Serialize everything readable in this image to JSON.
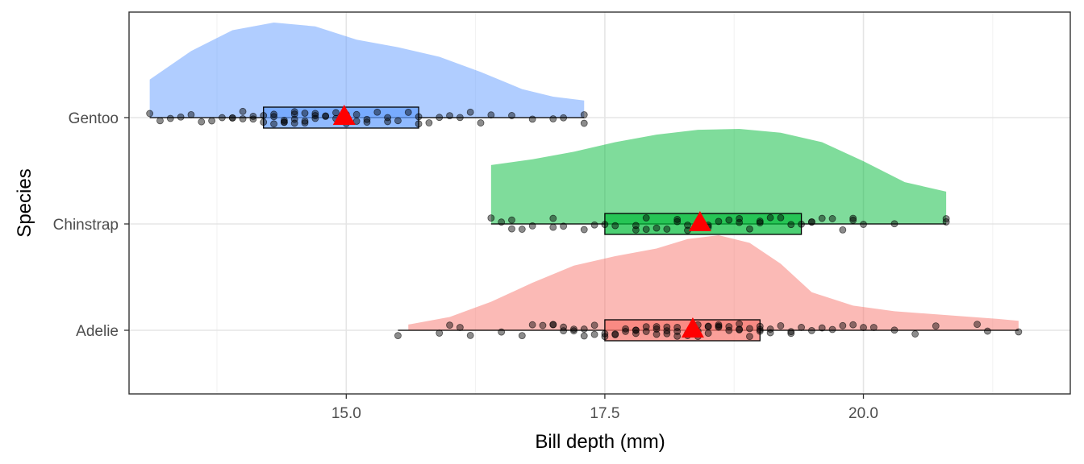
{
  "chart_data": {
    "type": "raincloud",
    "title": "",
    "xlabel": "Bill depth (mm)",
    "ylabel": "Species",
    "xlim": [
      12.9,
      22.0
    ],
    "x_ticks": [
      15.0,
      17.5,
      20.0
    ],
    "x_tick_labels": [
      "15.0",
      "17.5",
      "20.0"
    ],
    "grid": true,
    "categories": [
      "Gentoo",
      "Chinstrap",
      "Adelie"
    ],
    "mean_marker_color": "#ff0000",
    "series": [
      {
        "name": "Gentoo",
        "fill": "#619cff",
        "min": 13.1,
        "q1": 14.2,
        "median": 15.0,
        "q3": 15.7,
        "max": 17.3,
        "mean": 14.98,
        "density": [
          [
            13.1,
            0.4
          ],
          [
            13.5,
            0.7
          ],
          [
            13.9,
            0.92
          ],
          [
            14.3,
            1.0
          ],
          [
            14.7,
            0.96
          ],
          [
            15.1,
            0.82
          ],
          [
            15.5,
            0.74
          ],
          [
            15.9,
            0.64
          ],
          [
            16.3,
            0.48
          ],
          [
            16.7,
            0.3
          ],
          [
            17.0,
            0.22
          ],
          [
            17.3,
            0.18
          ]
        ],
        "points": [
          13.1,
          13.2,
          13.3,
          13.4,
          13.5,
          13.6,
          13.7,
          13.8,
          13.9,
          13.9,
          14.0,
          14.0,
          14.1,
          14.1,
          14.2,
          14.2,
          14.3,
          14.3,
          14.3,
          14.4,
          14.4,
          14.4,
          14.5,
          14.5,
          14.5,
          14.5,
          14.6,
          14.6,
          14.6,
          14.7,
          14.7,
          14.7,
          14.8,
          14.8,
          14.9,
          14.9,
          15.0,
          15.0,
          15.0,
          15.1,
          15.1,
          15.2,
          15.2,
          15.3,
          15.4,
          15.4,
          15.5,
          15.6,
          15.7,
          15.7,
          15.8,
          15.9,
          16.0,
          16.1,
          16.2,
          16.3,
          16.4,
          16.6,
          16.8,
          17.0,
          17.1,
          17.3,
          17.3
        ]
      },
      {
        "name": "Chinstrap",
        "fill": "#00ba38",
        "min": 16.4,
        "q1": 17.5,
        "median": 18.45,
        "q3": 19.4,
        "max": 20.8,
        "mean": 18.42,
        "density": [
          [
            16.4,
            0.62
          ],
          [
            16.8,
            0.68
          ],
          [
            17.2,
            0.76
          ],
          [
            17.6,
            0.86
          ],
          [
            18.0,
            0.94
          ],
          [
            18.4,
            0.99
          ],
          [
            18.8,
            1.0
          ],
          [
            19.2,
            0.96
          ],
          [
            19.6,
            0.86
          ],
          [
            20.0,
            0.66
          ],
          [
            20.4,
            0.44
          ],
          [
            20.8,
            0.34
          ]
        ],
        "points": [
          16.4,
          16.5,
          16.6,
          16.6,
          16.7,
          16.8,
          17.0,
          17.0,
          17.1,
          17.3,
          17.4,
          17.5,
          17.6,
          17.8,
          17.8,
          17.9,
          17.9,
          18.0,
          18.1,
          18.2,
          18.2,
          18.3,
          18.3,
          18.4,
          18.4,
          18.5,
          18.5,
          18.6,
          18.7,
          18.8,
          18.8,
          18.9,
          19.0,
          19.0,
          19.1,
          19.2,
          19.3,
          19.4,
          19.5,
          19.5,
          19.6,
          19.7,
          19.8,
          19.9,
          19.9,
          20.0,
          20.3,
          20.8,
          20.8
        ]
      },
      {
        "name": "Adelie",
        "fill": "#f8766d",
        "min": 15.5,
        "q1": 17.5,
        "median": 18.4,
        "q3": 19.0,
        "max": 21.5,
        "mean": 18.35,
        "density": [
          [
            15.6,
            0.06
          ],
          [
            16.0,
            0.14
          ],
          [
            16.4,
            0.3
          ],
          [
            16.8,
            0.5
          ],
          [
            17.2,
            0.68
          ],
          [
            17.6,
            0.78
          ],
          [
            18.0,
            0.86
          ],
          [
            18.3,
            0.96
          ],
          [
            18.6,
            1.0
          ],
          [
            18.9,
            0.92
          ],
          [
            19.2,
            0.7
          ],
          [
            19.5,
            0.4
          ],
          [
            19.9,
            0.26
          ],
          [
            20.3,
            0.2
          ],
          [
            20.8,
            0.16
          ],
          [
            21.3,
            0.12
          ],
          [
            21.5,
            0.1
          ]
        ],
        "points": [
          15.5,
          15.9,
          16.0,
          16.1,
          16.2,
          16.5,
          16.7,
          16.8,
          16.9,
          17.0,
          17.0,
          17.1,
          17.1,
          17.2,
          17.2,
          17.3,
          17.3,
          17.4,
          17.4,
          17.5,
          17.5,
          17.6,
          17.6,
          17.7,
          17.7,
          17.8,
          17.8,
          17.8,
          17.9,
          17.9,
          18.0,
          18.0,
          18.0,
          18.1,
          18.1,
          18.1,
          18.2,
          18.2,
          18.2,
          18.3,
          18.3,
          18.4,
          18.4,
          18.4,
          18.5,
          18.5,
          18.5,
          18.6,
          18.6,
          18.6,
          18.7,
          18.7,
          18.8,
          18.8,
          18.8,
          18.9,
          18.9,
          19.0,
          19.0,
          19.0,
          19.1,
          19.1,
          19.2,
          19.3,
          19.3,
          19.4,
          19.5,
          19.6,
          19.7,
          19.8,
          19.9,
          20.0,
          20.1,
          20.3,
          20.5,
          20.7,
          21.1,
          21.2,
          21.5
        ]
      }
    ]
  }
}
